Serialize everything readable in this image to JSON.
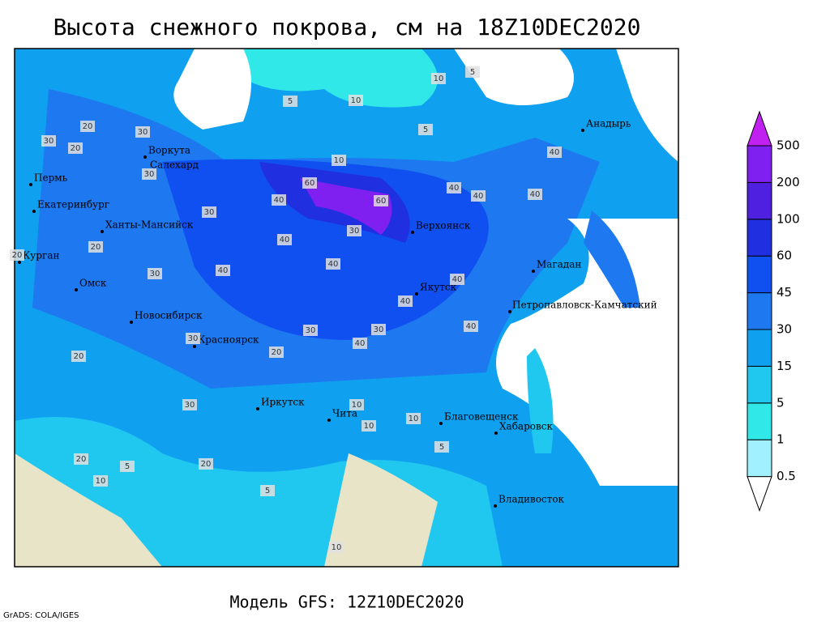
{
  "title": "Высота снежного покрова, см на 18Z10DEC2020",
  "footer": "Модель GFS: 12Z10DEC2020",
  "credit": "GrADS: COLA/IGES",
  "legend": {
    "levels": [
      0.5,
      1,
      5,
      15,
      30,
      45,
      60,
      100,
      200,
      500
    ],
    "colors": [
      "#ffffff",
      "#a0f0ff",
      "#30e8e8",
      "#20c8f0",
      "#10a0f0",
      "#1e78f0",
      "#1050f0",
      "#2030e0",
      "#5020e0",
      "#8020f0",
      "#c020f0"
    ]
  },
  "cities": [
    "Пермь",
    "Екатеринбург",
    "Ханты-Мансийск",
    "Курган",
    "Омск",
    "Новосибирск",
    "Красноярск",
    "Иркутск",
    "Чита",
    "Благовещенск",
    "Хабаровск",
    "Владивосток",
    "Якутск",
    "Верхоянск",
    "Магадан",
    "Петропавловск-Камчатский",
    "Анадырь",
    "Воркута",
    "Салехард"
  ],
  "contour_labels": [
    10,
    5,
    10,
    5,
    5,
    20,
    30,
    20,
    30,
    30,
    40,
    40,
    40,
    60,
    60,
    40,
    40,
    40,
    40,
    30,
    40,
    40,
    20,
    30,
    30,
    40,
    30,
    30,
    20,
    30,
    10,
    20,
    10,
    10,
    5,
    5,
    10,
    20,
    5,
    10,
    20,
    30,
    40,
    40,
    10,
    20
  ]
}
